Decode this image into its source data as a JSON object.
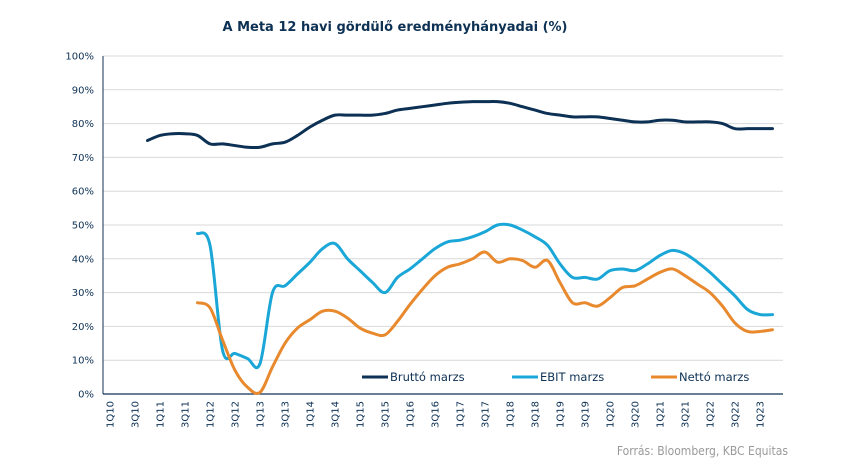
{
  "chart_data": {
    "type": "line",
    "title": "A Meta 12 havi gördülő eredményhányadai (%)",
    "xlabel": "",
    "ylabel": "",
    "ylim": [
      0,
      100
    ],
    "yticks": [
      "0%",
      "10%",
      "20%",
      "30%",
      "40%",
      "50%",
      "60%",
      "70%",
      "80%",
      "90%",
      "100%"
    ],
    "grid": true,
    "legend_position": "bottom-inside",
    "x": [
      "1Q10",
      "2Q10",
      "3Q10",
      "4Q10",
      "1Q11",
      "2Q11",
      "3Q11",
      "4Q11",
      "1Q12",
      "2Q12",
      "3Q12",
      "4Q12",
      "1Q13",
      "2Q13",
      "3Q13",
      "4Q13",
      "1Q14",
      "2Q14",
      "3Q14",
      "4Q14",
      "1Q15",
      "2Q15",
      "3Q15",
      "4Q15",
      "1Q16",
      "2Q16",
      "3Q16",
      "4Q16",
      "1Q17",
      "2Q17",
      "3Q17",
      "4Q17",
      "1Q18",
      "2Q18",
      "3Q18",
      "4Q18",
      "1Q19",
      "2Q19",
      "3Q19",
      "4Q19",
      "1Q20",
      "2Q20",
      "3Q20",
      "4Q20",
      "1Q21",
      "2Q21",
      "3Q21",
      "4Q21",
      "1Q22",
      "2Q22",
      "3Q22",
      "4Q22",
      "1Q23",
      "2Q23"
    ],
    "xtick_labels": [
      "1Q10",
      "3Q10",
      "1Q11",
      "3Q11",
      "1Q12",
      "3Q12",
      "1Q13",
      "3Q13",
      "1Q14",
      "3Q14",
      "1Q15",
      "3Q15",
      "1Q16",
      "3Q16",
      "1Q17",
      "3Q17",
      "1Q18",
      "3Q18",
      "1Q19",
      "3Q19",
      "1Q20",
      "3Q20",
      "1Q21",
      "3Q21",
      "1Q22",
      "3Q22",
      "1Q23"
    ],
    "series": [
      {
        "name": "Bruttó marzs",
        "color": "#0d3154",
        "values": [
          null,
          null,
          null,
          75,
          76.5,
          77,
          77,
          76.5,
          74,
          74,
          73.5,
          73,
          73,
          74,
          74.5,
          76.5,
          79,
          81,
          82.5,
          82.5,
          82.5,
          82.5,
          83,
          84,
          84.5,
          85,
          85.5,
          86,
          86.3,
          86.5,
          86.5,
          86.5,
          86,
          85,
          84,
          83,
          82.5,
          82,
          82,
          82,
          81.5,
          81,
          80.5,
          80.5,
          81,
          81,
          80.5,
          80.5,
          80.5,
          80,
          78.5,
          78.5,
          78.5,
          78.5
        ]
      },
      {
        "name": "EBIT marzs",
        "color": "#1aa7d8",
        "values": [
          null,
          null,
          null,
          null,
          null,
          null,
          null,
          47.5,
          44,
          13,
          12,
          10.5,
          9,
          30,
          32,
          35.5,
          39,
          43,
          44.5,
          40,
          36.5,
          33,
          30,
          34.5,
          37,
          40,
          43,
          45,
          45.5,
          46.5,
          48,
          50,
          50,
          48.5,
          46.5,
          44,
          38.5,
          34.5,
          34.5,
          34,
          36.5,
          37,
          36.5,
          38.5,
          41,
          42.5,
          41.5,
          39,
          36,
          32.5,
          29,
          25,
          23.5,
          23.5
        ]
      },
      {
        "name": "Nettó marzs",
        "color": "#e8892e",
        "values": [
          null,
          null,
          null,
          null,
          null,
          null,
          null,
          27,
          25.5,
          16,
          7,
          2,
          0.5,
          8,
          15,
          19.5,
          22,
          24.5,
          24.5,
          22.5,
          19.5,
          18,
          17.5,
          21.5,
          26.5,
          31,
          35,
          37.5,
          38.5,
          40,
          42,
          39,
          40,
          39.5,
          37.5,
          39.5,
          33,
          27,
          27,
          26,
          28.5,
          31.5,
          32,
          34,
          36,
          37,
          35,
          32.5,
          30,
          26,
          21,
          18.5,
          18.5,
          19
        ]
      }
    ],
    "source": "Forrás: Bloomberg, KBC Equitas"
  }
}
